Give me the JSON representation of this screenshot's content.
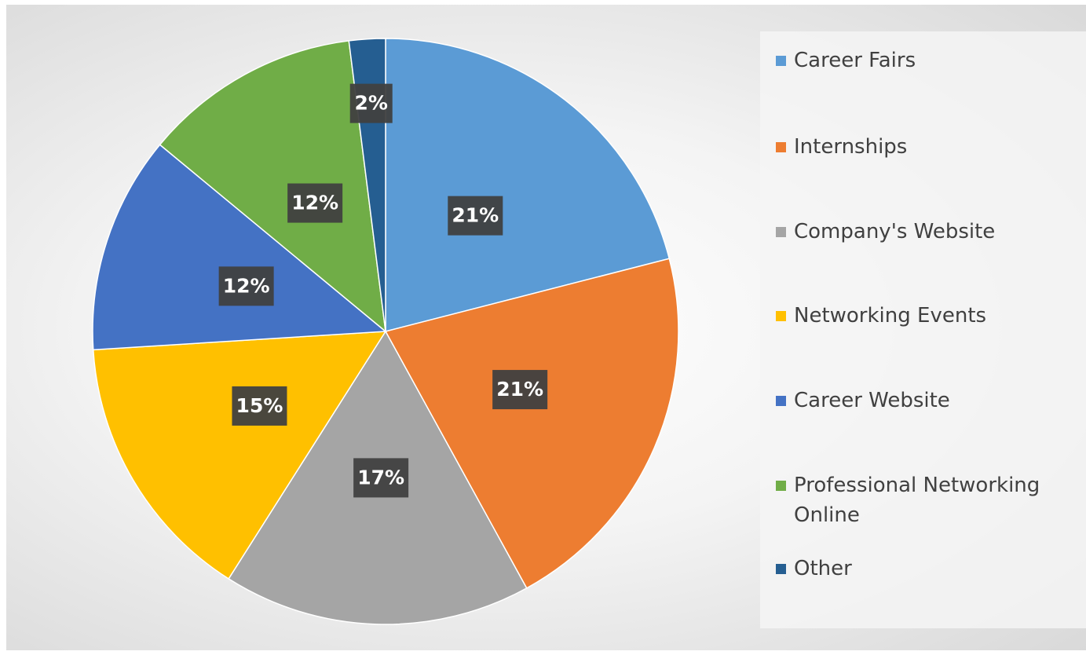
{
  "chart_data": {
    "type": "pie",
    "categories": [
      "Career Fairs",
      "Internships",
      "Company's Website",
      "Networking Events",
      "Career Website",
      "Professional Networking Online",
      "Other"
    ],
    "values": [
      21,
      21,
      17,
      15,
      12,
      12,
      2
    ],
    "value_labels": [
      "21%",
      "21%",
      "17%",
      "15%",
      "12%",
      "12%",
      "2%"
    ],
    "colors": [
      "#5b9bd5",
      "#ed7d31",
      "#a5a5a5",
      "#ffc000",
      "#4472c4",
      "#70ad47",
      "#255e91"
    ],
    "legend": "right"
  }
}
